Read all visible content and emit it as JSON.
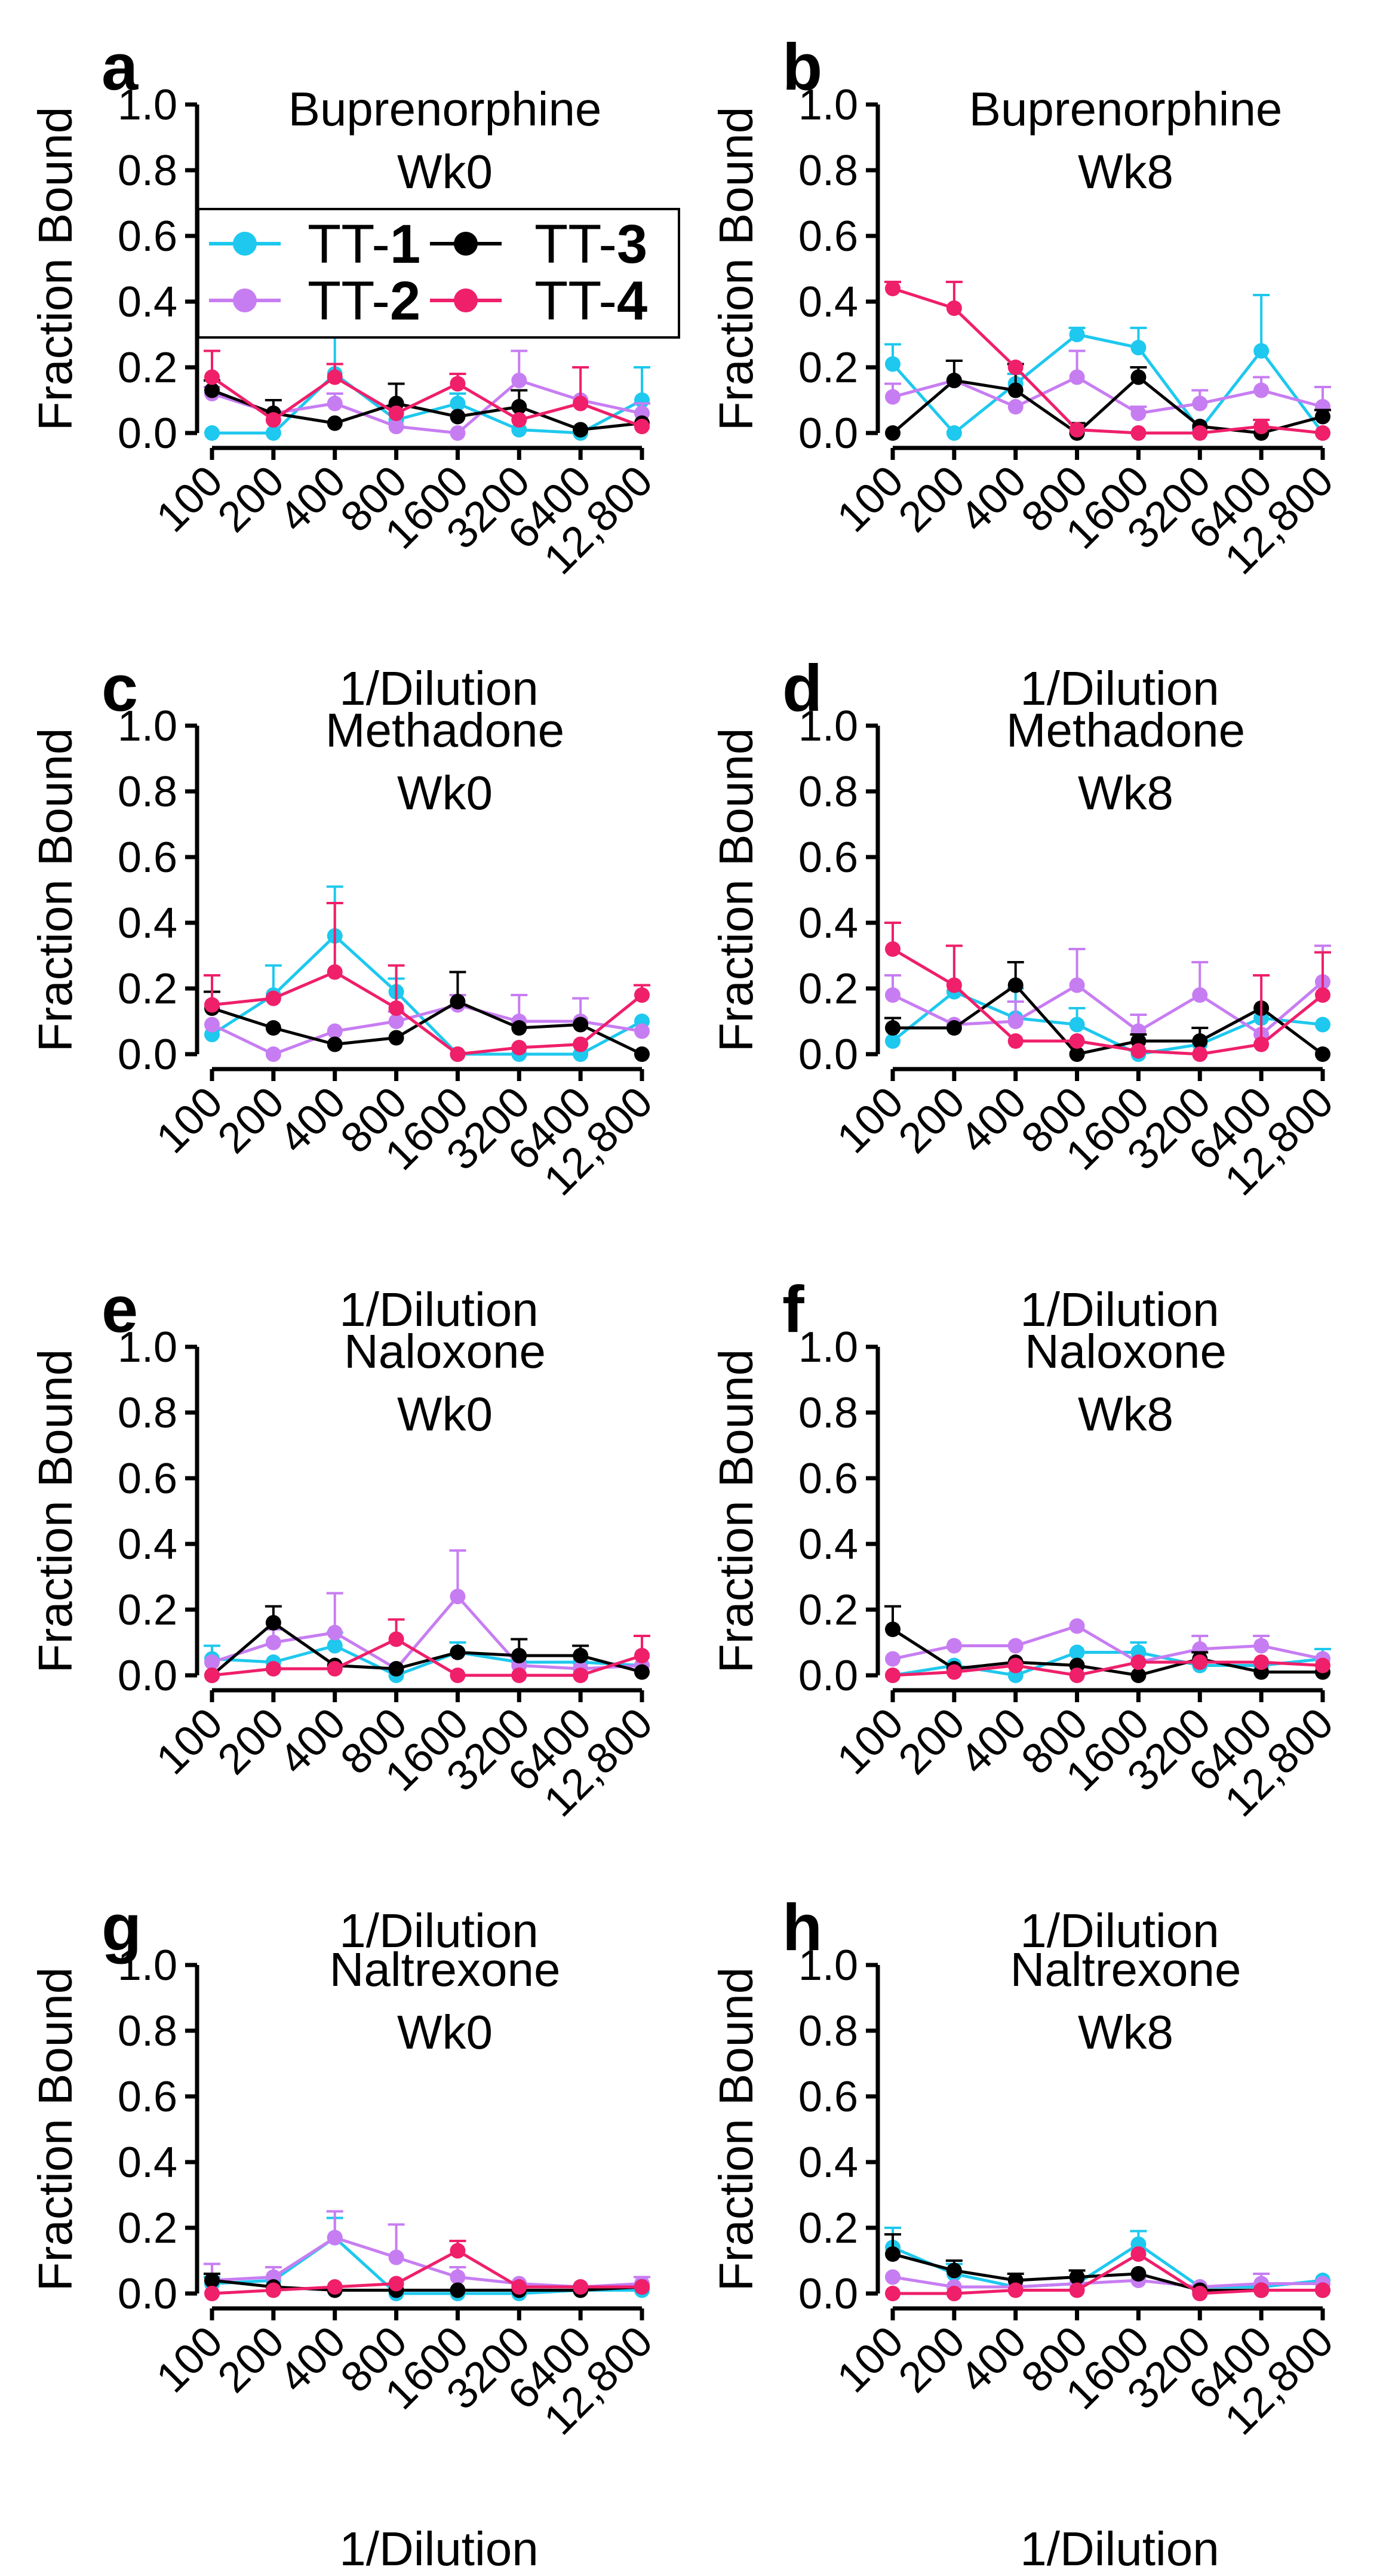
{
  "series_styles": [
    {
      "name": "TT-1",
      "prefix": "TT-",
      "number": "1",
      "color": "#1EC8EE"
    },
    {
      "name": "TT-2",
      "prefix": "TT-",
      "number": "2",
      "color": "#C77DF2"
    },
    {
      "name": "TT-3",
      "prefix": "TT-",
      "number": "3",
      "color": "#000000"
    },
    {
      "name": "TT-4",
      "prefix": "TT-",
      "number": "4",
      "color": "#EF1F6A"
    }
  ],
  "chart_data": [
    {
      "panel": "a",
      "type": "line",
      "title": [
        "Buprenorphine",
        "Wk0"
      ],
      "xlabel": "1/Dilution",
      "ylabel": "Fraction Bound",
      "categories": [
        "100",
        "200",
        "400",
        "800",
        "1600",
        "3200",
        "6400",
        "12,800"
      ],
      "yticks": [
        "0.0",
        "0.2",
        "0.4",
        "0.6",
        "0.8",
        "1.0"
      ],
      "ylim": [
        0,
        1
      ],
      "legend": "top-left",
      "series": [
        {
          "name": "TT-1",
          "values": [
            0.0,
            0.0,
            0.18,
            0.04,
            0.09,
            0.01,
            0.0,
            0.1
          ],
          "errors": [
            0,
            0,
            0.12,
            0,
            0.03,
            0,
            0,
            0.1
          ]
        },
        {
          "name": "TT-2",
          "values": [
            0.12,
            0.06,
            0.09,
            0.02,
            0.0,
            0.16,
            0.1,
            0.06
          ],
          "errors": [
            0.02,
            0,
            0.03,
            0,
            0,
            0.09,
            0,
            0.03
          ]
        },
        {
          "name": "TT-3",
          "values": [
            0.13,
            0.06,
            0.03,
            0.09,
            0.05,
            0.08,
            0.01,
            0.03
          ],
          "errors": [
            0.03,
            0.04,
            0,
            0.06,
            0,
            0.05,
            0,
            0
          ]
        },
        {
          "name": "TT-4",
          "values": [
            0.17,
            0.04,
            0.17,
            0.06,
            0.15,
            0.04,
            0.09,
            0.02
          ],
          "errors": [
            0.08,
            0,
            0.04,
            0,
            0.03,
            0,
            0.11,
            0
          ]
        }
      ]
    },
    {
      "panel": "b",
      "type": "line",
      "title": [
        "Buprenorphine",
        "Wk8"
      ],
      "xlabel": "1/Dilution",
      "ylabel": "Fraction Bound",
      "categories": [
        "100",
        "200",
        "400",
        "800",
        "1600",
        "3200",
        "6400",
        "12,800"
      ],
      "yticks": [
        "0.0",
        "0.2",
        "0.4",
        "0.6",
        "0.8",
        "1.0"
      ],
      "ylim": [
        0,
        1
      ],
      "series": [
        {
          "name": "TT-1",
          "values": [
            0.21,
            0.0,
            0.15,
            0.3,
            0.26,
            0.01,
            0.25,
            0.0
          ],
          "errors": [
            0.06,
            0,
            0.03,
            0.02,
            0.06,
            0,
            0.17,
            0
          ]
        },
        {
          "name": "TT-2",
          "values": [
            0.11,
            0.16,
            0.08,
            0.17,
            0.06,
            0.09,
            0.13,
            0.08
          ],
          "errors": [
            0.04,
            0.06,
            0,
            0.08,
            0.02,
            0.04,
            0.04,
            0.06
          ]
        },
        {
          "name": "TT-3",
          "values": [
            0.0,
            0.16,
            0.13,
            0.0,
            0.17,
            0.02,
            0.0,
            0.05
          ],
          "errors": [
            0,
            0.06,
            0.08,
            0.03,
            0.03,
            0,
            0,
            0.02
          ]
        },
        {
          "name": "TT-4",
          "values": [
            0.44,
            0.38,
            0.2,
            0.01,
            0.0,
            0.0,
            0.02,
            0.0
          ],
          "errors": [
            0.02,
            0.08,
            0,
            0,
            0,
            0,
            0.02,
            0
          ]
        }
      ]
    },
    {
      "panel": "c",
      "type": "line",
      "title": [
        "Methadone",
        "Wk0"
      ],
      "xlabel": "1/Dilution",
      "ylabel": "Fraction Bound",
      "categories": [
        "100",
        "200",
        "400",
        "800",
        "1600",
        "3200",
        "6400",
        "12,800"
      ],
      "yticks": [
        "0.0",
        "0.2",
        "0.4",
        "0.6",
        "0.8",
        "1.0"
      ],
      "ylim": [
        0,
        1
      ],
      "series": [
        {
          "name": "TT-1",
          "values": [
            0.06,
            0.18,
            0.36,
            0.19,
            0.0,
            0.0,
            0.0,
            0.1
          ],
          "errors": [
            0,
            0.09,
            0.15,
            0.04,
            0,
            0,
            0,
            0
          ]
        },
        {
          "name": "TT-2",
          "values": [
            0.09,
            0.0,
            0.07,
            0.1,
            0.15,
            0.1,
            0.1,
            0.07
          ],
          "errors": [
            0,
            0,
            0,
            0.03,
            0.03,
            0.08,
            0.07,
            0
          ]
        },
        {
          "name": "TT-3",
          "values": [
            0.14,
            0.08,
            0.03,
            0.05,
            0.16,
            0.08,
            0.09,
            0.0
          ],
          "errors": [
            0.05,
            0,
            0,
            0,
            0.09,
            0,
            0,
            0
          ]
        },
        {
          "name": "TT-4",
          "values": [
            0.15,
            0.17,
            0.25,
            0.14,
            0.0,
            0.02,
            0.03,
            0.18
          ],
          "errors": [
            0.09,
            0,
            0.21,
            0.13,
            0,
            0,
            0,
            0.03
          ]
        }
      ]
    },
    {
      "panel": "d",
      "type": "line",
      "title": [
        "Methadone",
        "Wk8"
      ],
      "xlabel": "1/Dilution",
      "ylabel": "Fraction Bound",
      "categories": [
        "100",
        "200",
        "400",
        "800",
        "1600",
        "3200",
        "6400",
        "12,800"
      ],
      "yticks": [
        "0.0",
        "0.2",
        "0.4",
        "0.6",
        "0.8",
        "1.0"
      ],
      "ylim": [
        0,
        1
      ],
      "series": [
        {
          "name": "TT-1",
          "values": [
            0.04,
            0.19,
            0.11,
            0.09,
            0.0,
            0.03,
            0.11,
            0.09
          ],
          "errors": [
            0,
            0.14,
            0.09,
            0.05,
            0,
            0,
            0,
            0
          ]
        },
        {
          "name": "TT-2",
          "values": [
            0.18,
            0.09,
            0.1,
            0.21,
            0.07,
            0.18,
            0.06,
            0.22
          ],
          "errors": [
            0.06,
            0,
            0.06,
            0.11,
            0.05,
            0.1,
            0,
            0.11
          ]
        },
        {
          "name": "TT-3",
          "values": [
            0.08,
            0.08,
            0.21,
            0.0,
            0.04,
            0.04,
            0.14,
            0.0
          ],
          "errors": [
            0.03,
            0,
            0.07,
            0,
            0.02,
            0.04,
            0,
            0
          ]
        },
        {
          "name": "TT-4",
          "values": [
            0.32,
            0.21,
            0.04,
            0.04,
            0.01,
            0.0,
            0.03,
            0.18
          ],
          "errors": [
            0.08,
            0.12,
            0,
            0,
            0,
            0,
            0.21,
            0.13
          ]
        }
      ]
    },
    {
      "panel": "e",
      "type": "line",
      "title": [
        "Naloxone",
        "Wk0"
      ],
      "xlabel": "1/Dilution",
      "ylabel": "Fraction Bound",
      "categories": [
        "100",
        "200",
        "400",
        "800",
        "1600",
        "3200",
        "6400",
        "12,800"
      ],
      "yticks": [
        "0.0",
        "0.2",
        "0.4",
        "0.6",
        "0.8",
        "1.0"
      ],
      "ylim": [
        0,
        1
      ],
      "series": [
        {
          "name": "TT-1",
          "values": [
            0.05,
            0.04,
            0.09,
            0.0,
            0.07,
            0.04,
            0.04,
            0.03
          ],
          "errors": [
            0.04,
            0,
            0.04,
            0,
            0.03,
            0,
            0,
            0
          ]
        },
        {
          "name": "TT-2",
          "values": [
            0.04,
            0.1,
            0.13,
            0.02,
            0.24,
            0.03,
            0.02,
            0.03
          ],
          "errors": [
            0,
            0.04,
            0.12,
            0,
            0.14,
            0,
            0,
            0
          ]
        },
        {
          "name": "TT-3",
          "values": [
            0.0,
            0.16,
            0.03,
            0.02,
            0.07,
            0.06,
            0.06,
            0.01
          ],
          "errors": [
            0,
            0.05,
            0,
            0,
            0,
            0.05,
            0.03,
            0
          ]
        },
        {
          "name": "TT-4",
          "values": [
            0.0,
            0.02,
            0.02,
            0.11,
            0.0,
            0.0,
            0.0,
            0.06
          ],
          "errors": [
            0,
            0,
            0,
            0.06,
            0,
            0,
            0,
            0.06
          ]
        }
      ]
    },
    {
      "panel": "f",
      "type": "line",
      "title": [
        "Naloxone",
        "Wk8"
      ],
      "xlabel": "1/Dilution",
      "ylabel": "Fraction Bound",
      "categories": [
        "100",
        "200",
        "400",
        "800",
        "1600",
        "3200",
        "6400",
        "12,800"
      ],
      "yticks": [
        "0.0",
        "0.2",
        "0.4",
        "0.6",
        "0.8",
        "1.0"
      ],
      "ylim": [
        0,
        1
      ],
      "series": [
        {
          "name": "TT-1",
          "values": [
            0.0,
            0.03,
            0.0,
            0.07,
            0.07,
            0.03,
            0.03,
            0.05
          ],
          "errors": [
            0,
            0,
            0,
            0,
            0.03,
            0,
            0,
            0.03
          ]
        },
        {
          "name": "TT-2",
          "values": [
            0.05,
            0.09,
            0.09,
            0.15,
            0.04,
            0.08,
            0.09,
            0.05
          ],
          "errors": [
            0,
            0,
            0,
            0,
            0,
            0.04,
            0.03,
            0
          ]
        },
        {
          "name": "TT-3",
          "values": [
            0.14,
            0.02,
            0.04,
            0.03,
            0.0,
            0.05,
            0.01,
            0.01
          ],
          "errors": [
            0.07,
            0,
            0,
            0,
            0,
            0.02,
            0,
            0
          ]
        },
        {
          "name": "TT-4",
          "values": [
            0.0,
            0.01,
            0.03,
            0.0,
            0.04,
            0.04,
            0.04,
            0.03
          ],
          "errors": [
            0,
            0,
            0,
            0,
            0,
            0,
            0,
            0
          ]
        }
      ]
    },
    {
      "panel": "g",
      "type": "line",
      "title": [
        "Naltrexone",
        "Wk0"
      ],
      "xlabel": "1/Dilution",
      "ylabel": "Fraction Bound",
      "categories": [
        "100",
        "200",
        "400",
        "800",
        "1600",
        "3200",
        "6400",
        "12,800"
      ],
      "yticks": [
        "0.0",
        "0.2",
        "0.4",
        "0.6",
        "0.8",
        "1.0"
      ],
      "ylim": [
        0,
        1
      ],
      "series": [
        {
          "name": "TT-1",
          "values": [
            0.03,
            0.04,
            0.17,
            0.0,
            0.0,
            0.0,
            0.01,
            0.01
          ],
          "errors": [
            0.02,
            0,
            0.06,
            0,
            0,
            0,
            0,
            0
          ]
        },
        {
          "name": "TT-2",
          "values": [
            0.04,
            0.05,
            0.17,
            0.11,
            0.05,
            0.03,
            0.02,
            0.03
          ],
          "errors": [
            0.05,
            0.03,
            0.08,
            0.1,
            0.03,
            0,
            0,
            0.02
          ]
        },
        {
          "name": "TT-3",
          "values": [
            0.04,
            0.02,
            0.01,
            0.01,
            0.01,
            0.01,
            0.01,
            0.02
          ],
          "errors": [
            0.02,
            0,
            0,
            0,
            0,
            0,
            0,
            0
          ]
        },
        {
          "name": "TT-4",
          "values": [
            0.0,
            0.01,
            0.02,
            0.03,
            0.13,
            0.02,
            0.02,
            0.02
          ],
          "errors": [
            0,
            0,
            0,
            0,
            0.03,
            0,
            0,
            0
          ]
        }
      ]
    },
    {
      "panel": "h",
      "type": "line",
      "title": [
        "Naltrexone",
        "Wk8"
      ],
      "xlabel": "1/Dilution",
      "ylabel": "Fraction Bound",
      "categories": [
        "100",
        "200",
        "400",
        "800",
        "1600",
        "3200",
        "6400",
        "12,800"
      ],
      "yticks": [
        "0.0",
        "0.2",
        "0.4",
        "0.6",
        "0.8",
        "1.0"
      ],
      "ylim": [
        0,
        1
      ],
      "series": [
        {
          "name": "TT-1",
          "values": [
            0.14,
            0.06,
            0.02,
            0.03,
            0.15,
            0.02,
            0.02,
            0.04
          ],
          "errors": [
            0.06,
            0.03,
            0,
            0,
            0.04,
            0,
            0,
            0
          ]
        },
        {
          "name": "TT-2",
          "values": [
            0.05,
            0.02,
            0.02,
            0.03,
            0.04,
            0.02,
            0.03,
            0.03
          ],
          "errors": [
            0,
            0,
            0,
            0,
            0,
            0,
            0.03,
            0
          ]
        },
        {
          "name": "TT-3",
          "values": [
            0.12,
            0.07,
            0.04,
            0.05,
            0.06,
            0.01,
            0.01,
            0.01
          ],
          "errors": [
            0.06,
            0.03,
            0.02,
            0.02,
            0,
            0,
            0,
            0
          ]
        },
        {
          "name": "TT-4",
          "values": [
            0.0,
            0.0,
            0.01,
            0.01,
            0.12,
            0.0,
            0.01,
            0.01
          ],
          "errors": [
            0,
            0,
            0,
            0,
            0,
            0,
            0,
            0
          ]
        }
      ]
    }
  ]
}
